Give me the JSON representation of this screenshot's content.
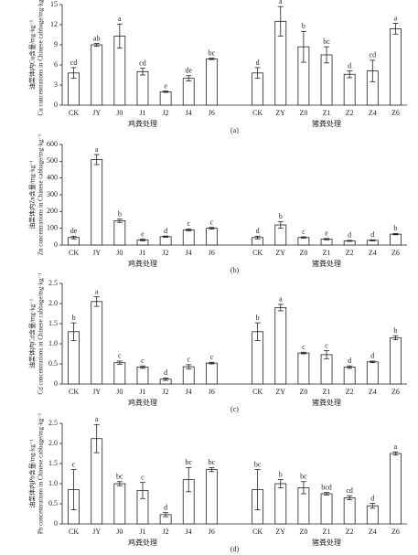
{
  "chart_data": [
    {
      "type": "bar",
      "panel_label": "(a)",
      "color": "#ffffff",
      "ylabel": [
        "油菜体内Cu含量/mg·kg⁻¹",
        "Cu concentrations in Chinese cabbage/mg·kg⁻¹"
      ],
      "ylim": [
        0,
        15
      ],
      "yticks": [
        0,
        3,
        6,
        9,
        12,
        15
      ],
      "groups": [
        {
          "name": "鸡粪处理",
          "categories": [
            "CK",
            "JY",
            "J0",
            "J1",
            "J2",
            "J4",
            "J6"
          ],
          "values": [
            4.8,
            9.0,
            10.3,
            5.0,
            2.0,
            4.0,
            6.9
          ],
          "errors": [
            0.8,
            0.2,
            1.8,
            0.5,
            0.1,
            0.4,
            0.1
          ],
          "letters": [
            "cd",
            "ab",
            "a",
            "cd",
            "e",
            "de",
            "bc"
          ]
        },
        {
          "name": "猪粪处理",
          "categories": [
            "CK",
            "ZY",
            "Z0",
            "Z1",
            "Z2",
            "Z4",
            "Z6"
          ],
          "values": [
            4.8,
            12.5,
            8.7,
            7.5,
            4.6,
            5.1,
            11.4
          ],
          "errors": [
            0.8,
            2.2,
            2.3,
            1.2,
            0.5,
            1.6,
            0.8
          ],
          "letters": [
            "d",
            "a",
            "b",
            "bc",
            "d",
            "cd",
            "a"
          ]
        }
      ]
    },
    {
      "type": "bar",
      "panel_label": "(b)",
      "color": "#ffffff",
      "ylabel": [
        "油菜体内Zn含量/mg·kg⁻¹",
        "Zn concentrations in Chinese cabbage/mg·kg⁻¹"
      ],
      "ylim": [
        0,
        600
      ],
      "yticks": [
        0,
        100,
        200,
        300,
        400,
        500,
        600
      ],
      "groups": [
        {
          "name": "鸡粪处理",
          "categories": [
            "CK",
            "JY",
            "J0",
            "J1",
            "J2",
            "J4",
            "J6"
          ],
          "values": [
            45,
            510,
            145,
            30,
            50,
            90,
            100
          ],
          "errors": [
            8,
            30,
            10,
            5,
            4,
            6,
            5
          ],
          "letters": [
            "de",
            "a",
            "b",
            "e",
            "d",
            "c",
            "c"
          ]
        },
        {
          "name": "猪粪处理",
          "categories": [
            "CK",
            "ZY",
            "Z0",
            "Z1",
            "Z2",
            "Z4",
            "Z6"
          ],
          "values": [
            45,
            120,
            45,
            35,
            25,
            28,
            65
          ],
          "errors": [
            8,
            20,
            4,
            4,
            3,
            3,
            4
          ],
          "letters": [
            "d",
            "b",
            "c",
            "e",
            "d",
            "d",
            "b"
          ]
        }
      ]
    },
    {
      "type": "bar",
      "panel_label": "(c)",
      "color": "#ffffff",
      "ylabel": [
        "油菜体内Cd含量/mg·kg⁻¹",
        "Cd concentrations in Chinese cabbage/mg·kg⁻¹"
      ],
      "ylim": [
        0,
        2.5
      ],
      "yticks": [
        0,
        0.5,
        {
          "value": 1,
          "label": "1.0"
        },
        1.5,
        {
          "value": 2,
          "label": "2.0"
        },
        2.5
      ],
      "groups": [
        {
          "name": "鸡粪处理",
          "categories": [
            "CK",
            "JY",
            "J0",
            "J1",
            "J2",
            "J4",
            "J6"
          ],
          "values": [
            1.3,
            2.05,
            0.53,
            0.42,
            0.12,
            0.43,
            0.52
          ],
          "errors": [
            0.22,
            0.12,
            0.04,
            0.03,
            0.03,
            0.05,
            0.02
          ],
          "letters": [
            "b",
            "a",
            "c",
            "c",
            "d",
            "c",
            "c"
          ]
        },
        {
          "name": "猪粪处理",
          "categories": [
            "CK",
            "ZY",
            "Z0",
            "Z1",
            "Z2",
            "Z4",
            "Z6"
          ],
          "values": [
            1.3,
            1.9,
            0.77,
            0.73,
            0.42,
            0.55,
            1.15
          ],
          "errors": [
            0.22,
            0.08,
            0.02,
            0.1,
            0.03,
            0.02,
            0.05
          ],
          "letters": [
            "b",
            "a",
            "c",
            "c",
            "d",
            "d",
            "b"
          ]
        }
      ]
    },
    {
      "type": "bar",
      "panel_label": "(d)",
      "color": "#ffffff",
      "ylabel": [
        "油菜体内Pb含量/mg·kg⁻¹",
        "Pb concentrations in Chinese cabbage/mg·kg⁻¹"
      ],
      "ylim": [
        0,
        2.5
      ],
      "yticks": [
        0,
        0.5,
        {
          "value": 1,
          "label": "1.0"
        },
        1.5,
        {
          "value": 2,
          "label": "2.0"
        },
        2.5
      ],
      "groups": [
        {
          "name": "鸡粪处理",
          "categories": [
            "CK",
            "JY",
            "J0",
            "J1",
            "J2",
            "J4",
            "J6"
          ],
          "values": [
            0.85,
            2.12,
            1.0,
            0.83,
            0.23,
            1.1,
            1.35
          ],
          "errors": [
            0.5,
            0.35,
            0.05,
            0.2,
            0.05,
            0.3,
            0.05
          ],
          "letters": [
            "c",
            "a",
            "bc",
            "c",
            "d",
            "bc",
            "bc"
          ]
        },
        {
          "name": "猪粪处理",
          "categories": [
            "CK",
            "ZY",
            "Z0",
            "Z1",
            "Z2",
            "Z4",
            "Z6"
          ],
          "values": [
            0.85,
            1.0,
            0.9,
            0.75,
            0.65,
            0.45,
            1.75
          ],
          "errors": [
            0.5,
            0.1,
            0.15,
            0.03,
            0.05,
            0.06,
            0.04
          ],
          "letters": [
            "bc",
            "b",
            "bc",
            "bcd",
            "cd",
            "d",
            "a"
          ]
        }
      ]
    }
  ]
}
